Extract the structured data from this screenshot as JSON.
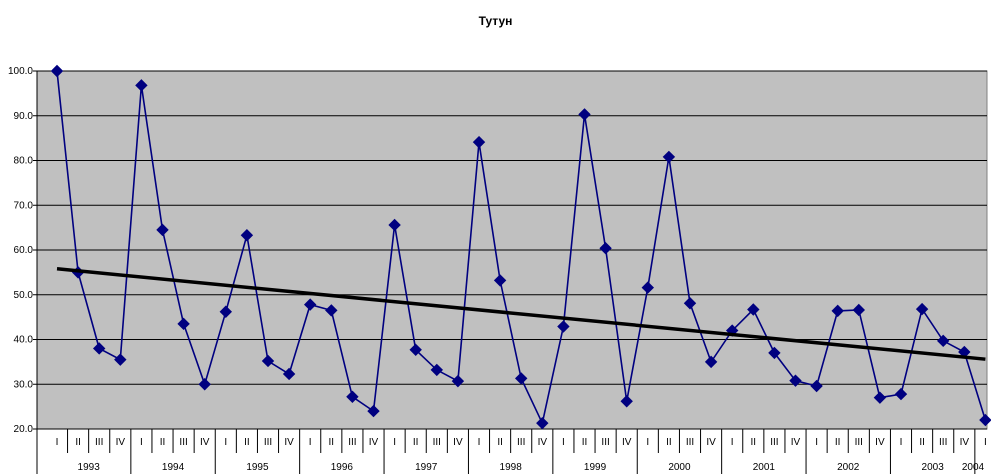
{
  "chart_data": {
    "type": "line",
    "title": "Тутун",
    "xlabel": "",
    "ylabel": "",
    "ylim": [
      20,
      100
    ],
    "yticks": [
      "20.0",
      "30.0",
      "40.0",
      "50.0",
      "60.0",
      "70.0",
      "80.0",
      "90.0",
      "100.0"
    ],
    "quarter_labels": [
      "I",
      "II",
      "III",
      "IV"
    ],
    "years": [
      "1993",
      "1994",
      "1995",
      "1996",
      "1997",
      "1998",
      "1999",
      "2000",
      "2001",
      "2002",
      "2003",
      "2004"
    ],
    "grid": true,
    "legend": "none",
    "series": [
      {
        "marker": "diamond",
        "color": "#000080",
        "values": [
          100.0,
          55.0,
          38.0,
          35.5,
          96.8,
          64.5,
          43.5,
          30.0,
          46.2,
          63.3,
          35.2,
          32.3,
          47.8,
          46.5,
          27.2,
          24.0,
          65.6,
          37.7,
          33.2,
          30.7,
          84.1,
          53.2,
          31.3,
          21.3,
          42.9,
          90.3,
          60.4,
          26.2,
          51.6,
          80.8,
          48.1,
          35.0,
          42.0,
          46.7,
          37.0,
          30.8,
          29.6,
          46.4,
          46.6,
          27.0,
          27.8,
          46.8,
          39.7,
          37.2,
          22.0
        ]
      }
    ],
    "trendline": {
      "color": "#000000",
      "start": 55.8,
      "end": 35.6
    }
  },
  "colors": {
    "plot_bg": "#c0c0c0",
    "series": "#000080",
    "trend": "#000000",
    "grid": "#000000"
  }
}
